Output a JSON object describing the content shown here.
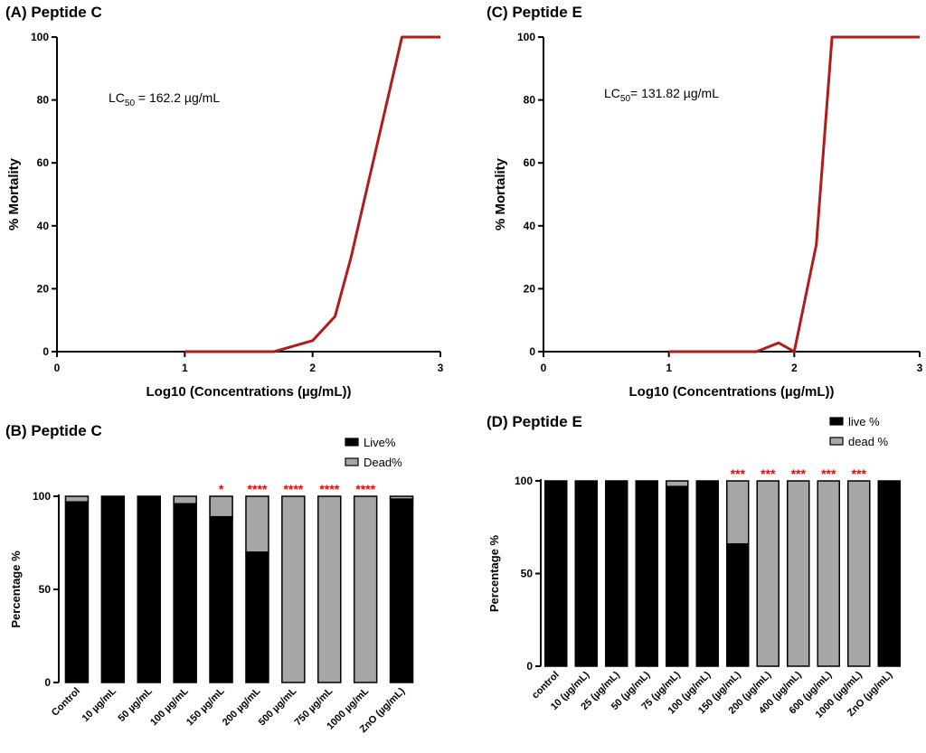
{
  "chart_data": [
    {
      "id": "A",
      "type": "line",
      "title": "(A) Peptide C",
      "xlabel": "Log10 (Concentrations (µg/mL))",
      "ylabel": "% Mortality",
      "xlim": [
        0,
        3
      ],
      "ylim": [
        0,
        100
      ],
      "xticks": [
        0,
        1,
        2,
        3
      ],
      "yticks": [
        0,
        20,
        40,
        60,
        80,
        100
      ],
      "annotation": {
        "main": "LC",
        "sub": "50",
        "rest": " = 162.2 µg/mL"
      },
      "color": "#b01c1c",
      "x": [
        1,
        1.699,
        2,
        2.176,
        2.301,
        2.699,
        3
      ],
      "y": [
        0,
        0,
        3.5,
        11.2,
        30,
        100,
        100
      ]
    },
    {
      "id": "C",
      "type": "line",
      "title": "(C) Peptide E",
      "xlabel": "Log10 (Concentrations (µg/mL))",
      "ylabel": "% Mortality",
      "xlim": [
        0,
        3
      ],
      "ylim": [
        0,
        100
      ],
      "xticks": [
        0,
        1,
        2,
        3
      ],
      "yticks": [
        0,
        20,
        40,
        60,
        80,
        100
      ],
      "annotation": {
        "main": "LC",
        "sub": "50",
        "rest": "= 131.82 µg/mL"
      },
      "color": "#b01c1c",
      "x": [
        1,
        1.699,
        1.875,
        2,
        2.176,
        2.301,
        3
      ],
      "y": [
        0,
        0,
        2.8,
        0,
        34,
        100,
        100
      ]
    },
    {
      "id": "B",
      "type": "bar",
      "stacked": true,
      "title": "(B) Peptide C",
      "ylabel": "Percentage %",
      "ylim": [
        0,
        100
      ],
      "yticks": [
        0,
        50,
        100
      ],
      "legend": [
        "Live%",
        "Dead%"
      ],
      "categories": [
        "Control",
        "10 µg/mL",
        "50 µg/mL",
        "100 µg/mL",
        "150 µg/mL",
        "200 µg/mL",
        "500 µg/mL",
        "750 µg/mL",
        "1000 µg/mL",
        "ZnO (µg/mL)"
      ],
      "series": [
        {
          "name": "Live%",
          "color": "#000000",
          "values": [
            97,
            100,
            100,
            96,
            89,
            70,
            0,
            0,
            0,
            98.5
          ]
        },
        {
          "name": "Dead%",
          "color": "#a6a6a6",
          "values": [
            3,
            0,
            0,
            4,
            11,
            30,
            100,
            100,
            100,
            1.5
          ]
        }
      ],
      "significance": [
        "",
        "",
        "",
        "",
        "*",
        "****",
        "****",
        "****",
        "****",
        ""
      ]
    },
    {
      "id": "D",
      "type": "bar",
      "stacked": true,
      "title": "(D) Peptide E",
      "ylabel": "Percentage %",
      "ylim": [
        0,
        100
      ],
      "yticks": [
        0,
        50,
        100
      ],
      "legend": [
        "live %",
        "dead %"
      ],
      "categories": [
        "control",
        "10 (µg/mL)",
        "25 (µg/mL)",
        "50 (µg/mL)",
        "75 (µg/mL)",
        "100 (µg/mL)",
        "150 (µg/mL)",
        "200 (µg/mL)",
        "400 (µg/mL)",
        "600 (µg/mL)",
        "1000 (µg/mL)",
        "ZnO (µg/mL)"
      ],
      "series": [
        {
          "name": "live %",
          "color": "#000000",
          "values": [
            100,
            100,
            100,
            100,
            97,
            100,
            66,
            0,
            0,
            0,
            0,
            100
          ]
        },
        {
          "name": "dead %",
          "color": "#a6a6a6",
          "values": [
            0,
            0,
            0,
            0,
            3,
            0,
            34,
            100,
            100,
            100,
            100,
            0
          ]
        }
      ],
      "significance": [
        "",
        "",
        "",
        "",
        "",
        "",
        "***",
        "***",
        "***",
        "***",
        "***",
        ""
      ]
    }
  ]
}
